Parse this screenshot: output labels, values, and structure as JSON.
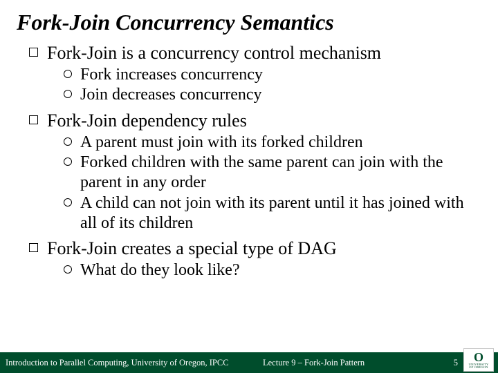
{
  "title": "Fork-Join Concurrency Semantics",
  "points": {
    "p1": {
      "text": "Fork-Join is a concurrency control mechanism",
      "sub": {
        "s1": "Fork increases concurrency",
        "s2": "Join decreases concurrency"
      }
    },
    "p2": {
      "text": "Fork-Join dependency rules",
      "sub": {
        "s1": "A parent must join with its forked children",
        "s2": "Forked children with the same parent can join with the parent in any order",
        "s3": "A child can not join with its parent until it has joined with all of its children"
      }
    },
    "p3": {
      "text": "Fork-Join creates a special type of DAG",
      "sub": {
        "s1": "What do they look like?"
      }
    }
  },
  "footer": {
    "left": "Introduction to Parallel Computing, University of Oregon, IPCC",
    "center": "Lecture 9 – Fork-Join Pattern",
    "page": "5",
    "logo_letter": "O",
    "logo_text1": "UNIVERSITY",
    "logo_text2": "OF OREGON"
  },
  "colors": {
    "footer_bg": "#004d2c",
    "footer_text": "#ffffff",
    "body_bg": "#ffffff",
    "text": "#000000"
  }
}
